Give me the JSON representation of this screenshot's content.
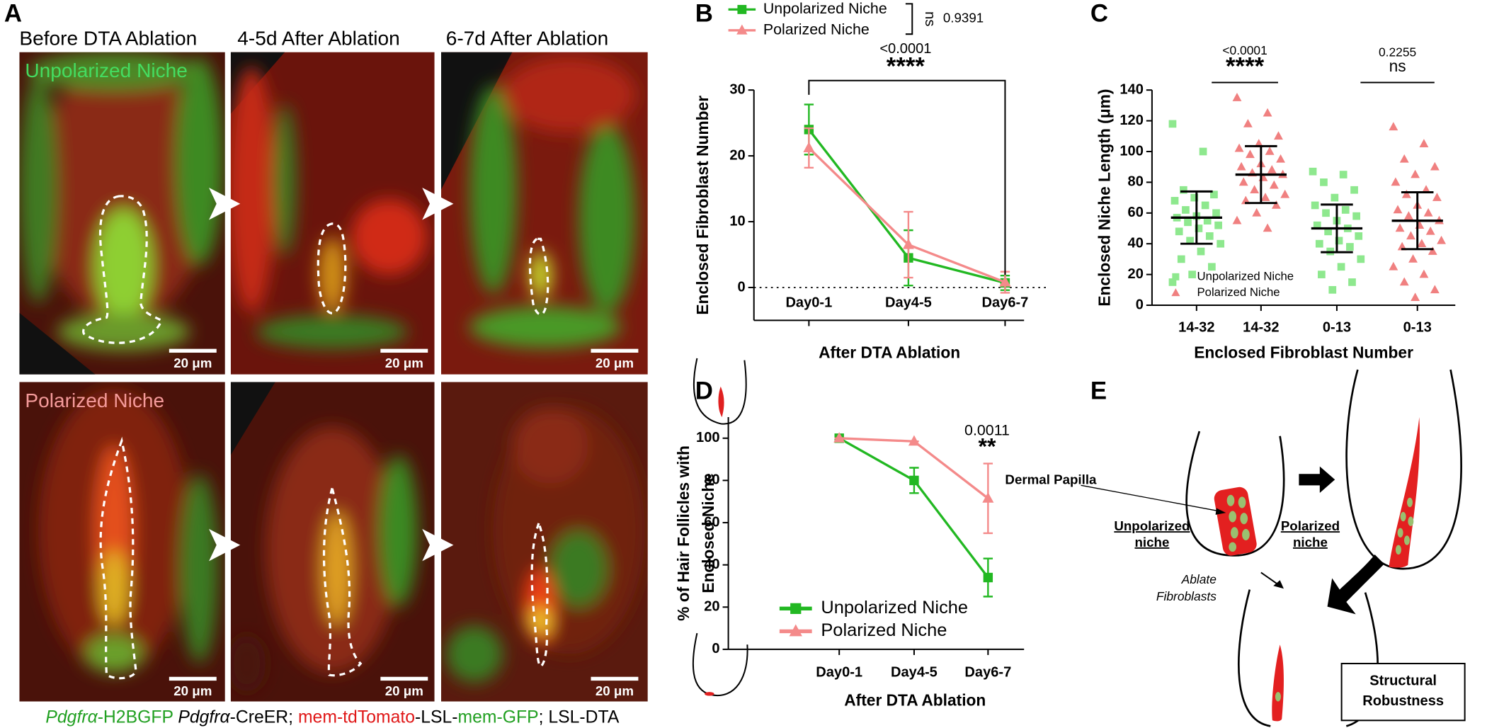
{
  "panel_labels": [
    "A",
    "B",
    "C",
    "D",
    "E"
  ],
  "panel_a": {
    "column_titles": [
      "Before DTA Ablation",
      "4-5d After Ablation",
      "6-7d After Ablation"
    ],
    "row_titles": [
      "Unpolarized Niche",
      "Polarized Niche"
    ],
    "scale_bars": [
      "20 μm",
      "20 μm",
      "20 μm",
      "20 μm",
      "20 μm",
      "20 μm"
    ],
    "caption": [
      "Pdgfrα",
      "-H2BGFP ",
      "Pdgfrα",
      "-CreER; ",
      "mem-tdTomato",
      "-LSL-",
      "mem-GFP",
      "; LSL-DTA"
    ]
  },
  "chart_data": [
    {
      "type": "line",
      "categories": [
        "Day0-1",
        "Day4-5",
        "Day6-7"
      ],
      "series": [
        {
          "name": "Unpolarized Niche",
          "color": "#22b822",
          "marker": "square",
          "values": [
            24,
            4.5,
            0.7
          ],
          "errors": [
            3.8,
            4.2,
            1.1
          ]
        },
        {
          "name": "Polarized Niche",
          "color": "#f48a8a",
          "marker": "triangle",
          "values": [
            21.2,
            6.5,
            0.8
          ],
          "errors": [
            3,
            5,
            1.6
          ]
        }
      ],
      "ylim": [
        -5,
        30
      ],
      "yticks": [
        0,
        10,
        20,
        30
      ],
      "zero_line": true,
      "ylabel": "Enclosed Fibroblast Number",
      "xlabel": "After DTA Ablation",
      "legend": "top",
      "annotations": [
        "ns",
        "0.9391",
        "<0.0001",
        "****"
      ]
    },
    {
      "type": "strip",
      "series": [
        {
          "name": "Unpolarized Niche",
          "color": "#8ee88e",
          "marker": "square",
          "categories": [
            "14-32",
            "0-13"
          ],
          "values": [
            [
              118,
              100,
              75,
              72,
              70,
              68,
              65,
              62,
              60,
              58,
              57,
              55,
              54,
              52,
              50,
              48,
              45,
              42,
              40,
              35,
              30,
              25,
              20,
              15
            ],
            [
              87,
              85,
              80,
              75,
              70,
              65,
              62,
              60,
              58,
              55,
              52,
              50,
              48,
              45,
              42,
              40,
              38,
              35,
              30,
              25,
              20,
              15,
              10
            ]
          ],
          "means": [
            57,
            50
          ],
          "sds": [
            17,
            15.5
          ]
        },
        {
          "name": "Polarized Niche",
          "color": "#f08080",
          "marker": "triangle",
          "categories": [
            "14-32",
            "0-13"
          ],
          "values": [
            [
              135,
              125,
              118,
              110,
              105,
              102,
              100,
              98,
              95,
              92,
              90,
              88,
              86,
              85,
              83,
              80,
              78,
              75,
              72,
              70,
              68,
              65,
              60,
              55,
              50
            ],
            [
              116,
              105,
              95,
              90,
              85,
              80,
              75,
              72,
              70,
              65,
              62,
              60,
              58,
              55,
              52,
              50,
              48,
              45,
              42,
              40,
              38,
              35,
              30,
              25,
              20,
              15,
              10,
              5
            ]
          ],
          "means": [
            85,
            55
          ],
          "sds": [
            18.5,
            18.5
          ]
        }
      ],
      "ylim": [
        0,
        140
      ],
      "yticks": [
        0,
        20,
        40,
        60,
        80,
        100,
        120,
        140
      ],
      "ylabel": "Enclosed Niche Length (μm)",
      "xlabel": "Enclosed Fibroblast Number",
      "legend": "lower left",
      "annotations": [
        "<0.0001",
        "****",
        "0.2255",
        "ns"
      ]
    },
    {
      "type": "line",
      "categories": [
        "Day0-1",
        "Day4-5",
        "Day6-7"
      ],
      "series": [
        {
          "name": "Unpolarized Niche",
          "color": "#22b822",
          "marker": "square",
          "values": [
            100,
            80,
            34
          ],
          "errors": [
            0,
            6,
            9
          ]
        },
        {
          "name": "Polarized Niche",
          "color": "#f48a8a",
          "marker": "triangle",
          "values": [
            100,
            98.5,
            71.5
          ],
          "errors": [
            0,
            0,
            16.5
          ]
        }
      ],
      "ylim": [
        0,
        110
      ],
      "yticks": [
        0,
        20,
        40,
        60,
        80,
        100
      ],
      "zero_line": false,
      "ylabel": [
        "% of Hair Follicles with",
        "Enclosed Niche"
      ],
      "xlabel": "After DTA Ablation",
      "legend": "lower left",
      "annotations": [
        "0.0011",
        "**"
      ]
    }
  ],
  "panel_e": {
    "dermal_papilla": "Dermal Papilla",
    "unpolarized": [
      "Unpolarized",
      "niche"
    ],
    "polarized": [
      "Polarized",
      "niche"
    ],
    "ablate": [
      "Ablate",
      "Fibroblasts"
    ],
    "robustness": [
      "Structural",
      "Robustness"
    ]
  }
}
